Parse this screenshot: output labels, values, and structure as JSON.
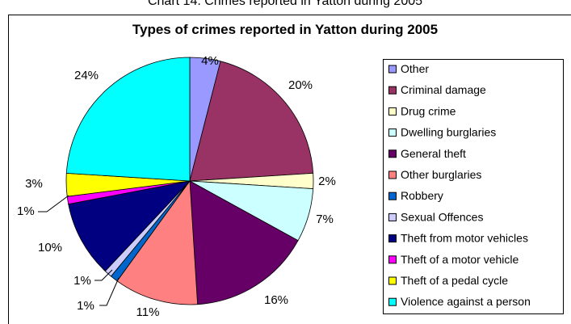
{
  "top_caption": "Chart 14. Crimes reported in Yatton during 2005",
  "chart_data": {
    "type": "pie",
    "title": "Types of crimes reported in Yatton during 2005",
    "legend_position": "right",
    "slices": [
      {
        "label": "Other",
        "value": 4,
        "value_label": "4%",
        "color": "#9999ff"
      },
      {
        "label": "Criminal damage",
        "value": 20,
        "value_label": "20%",
        "color": "#993366"
      },
      {
        "label": "Drug crime",
        "value": 2,
        "value_label": "2%",
        "color": "#ffffcc"
      },
      {
        "label": "Dwelling burglaries",
        "value": 7,
        "value_label": "7%",
        "color": "#ccffff"
      },
      {
        "label": "General theft",
        "value": 16,
        "value_label": "16%",
        "color": "#660066"
      },
      {
        "label": "Other burglaries",
        "value": 11,
        "value_label": "11%",
        "color": "#ff8080"
      },
      {
        "label": "Robbery",
        "value": 1,
        "value_label": "1%",
        "color": "#0066cc"
      },
      {
        "label": "Sexual Offences",
        "value": 1,
        "value_label": "1%",
        "color": "#ccccff"
      },
      {
        "label": "Theft from motor vehicles",
        "value": 10,
        "value_label": "10%",
        "color": "#000080"
      },
      {
        "label": "Theft of a motor vehicle",
        "value": 1,
        "value_label": "1%",
        "color": "#ff00ff"
      },
      {
        "label": "Theft of a pedal cycle",
        "value": 3,
        "value_label": "3%",
        "color": "#ffff00"
      },
      {
        "label": "Violence against a person",
        "value": 24,
        "value_label": "24%",
        "color": "#00ffff"
      }
    ]
  }
}
